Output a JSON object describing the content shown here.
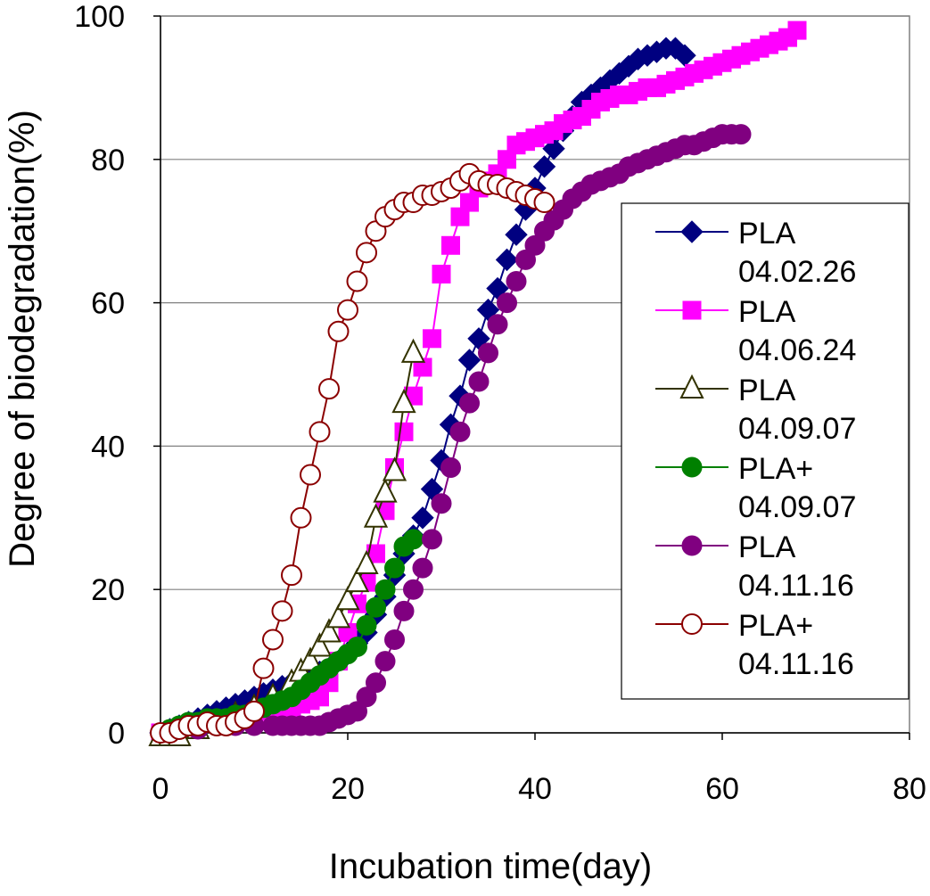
{
  "chart_data": {
    "type": "line",
    "title": "",
    "xlabel": "Incubation time(day)",
    "ylabel": "Degree of biodegradation(%)",
    "xlim": [
      0,
      80
    ],
    "ylim": [
      0,
      100
    ],
    "xticks": [
      0,
      20,
      40,
      60,
      80
    ],
    "yticks": [
      0,
      20,
      40,
      60,
      80,
      100
    ],
    "grid": "horizontal",
    "legend_position": "right",
    "series": [
      {
        "name": "PLA 04.02.26",
        "label_lines": [
          "PLA",
          "04.02.26"
        ],
        "color": "#000080",
        "marker": "diamond-filled",
        "x": [
          0,
          1,
          2,
          3,
          4,
          5,
          6,
          7,
          8,
          9,
          10,
          11,
          12,
          13,
          14,
          15,
          16,
          17,
          18,
          19,
          20,
          21,
          22,
          23,
          24,
          25,
          26,
          27,
          28,
          29,
          30,
          31,
          32,
          33,
          34,
          35,
          36,
          37,
          38,
          39,
          40,
          41,
          42,
          43,
          44,
          45,
          46,
          47,
          48,
          49,
          50,
          51,
          52,
          53,
          54,
          55,
          56
        ],
        "y": [
          0,
          0.5,
          1,
          1.5,
          2,
          2.5,
          3,
          3.5,
          4,
          4.5,
          5,
          5.5,
          6,
          6.5,
          7,
          7.5,
          8,
          8.5,
          9,
          10,
          11,
          12.5,
          14,
          16.5,
          19,
          22,
          25,
          27.5,
          30,
          34,
          38,
          43,
          47,
          52,
          55,
          59,
          62,
          66,
          69.5,
          73,
          76,
          79,
          81.5,
          84,
          86,
          88,
          89,
          90,
          91,
          92,
          93,
          94,
          94.5,
          95,
          95.5,
          95.5,
          94.5
        ]
      },
      {
        "name": "PLA 04.06.24",
        "label_lines": [
          "PLA",
          "04.06.24"
        ],
        "color": "#ff00ff",
        "marker": "square-filled",
        "x": [
          0,
          2,
          4,
          6,
          8,
          10,
          12,
          14,
          15,
          16,
          17,
          18,
          19,
          20,
          21,
          22,
          23,
          24,
          25,
          26,
          27,
          28,
          29,
          30,
          31,
          32,
          33,
          34,
          35,
          36,
          37,
          38,
          39,
          40,
          41,
          42,
          43,
          44,
          45,
          46,
          47,
          48,
          49,
          50,
          51,
          52,
          53,
          54,
          55,
          56,
          57,
          58,
          59,
          60,
          61,
          62,
          63,
          64,
          65,
          66,
          67,
          68
        ],
        "y": [
          0,
          0.5,
          1,
          1.5,
          2,
          2.5,
          3,
          3.5,
          4,
          4.5,
          5,
          7,
          10,
          14,
          18,
          21,
          25,
          31,
          37,
          42,
          47,
          51,
          55,
          64,
          68,
          72,
          74,
          76,
          77,
          78,
          80,
          82,
          82.5,
          83,
          83.5,
          84,
          85,
          85.5,
          86,
          87,
          88,
          88.5,
          89,
          89,
          89.5,
          90,
          90,
          90.5,
          91,
          91.5,
          92,
          92.5,
          93,
          93.5,
          94,
          94.5,
          95,
          95.5,
          96,
          96.5,
          97,
          98
        ]
      },
      {
        "name": "PLA 04.09.07",
        "label_lines": [
          "PLA",
          "04.09.07"
        ],
        "color": "#333300",
        "marker": "triangle-open",
        "x": [
          0,
          1,
          2,
          4,
          6,
          8,
          10,
          12,
          14,
          15,
          16,
          17,
          18,
          19,
          20,
          21,
          22,
          23,
          24,
          25,
          26,
          27
        ],
        "y": [
          -0.5,
          -0.5,
          -0.5,
          0.5,
          1.5,
          2.5,
          3.5,
          5,
          7,
          8.5,
          10,
          12,
          14,
          16,
          18.5,
          21,
          23.5,
          30,
          33.5,
          36.5,
          46,
          53
        ]
      },
      {
        "name": "PLA+ 04.09.07",
        "label_lines": [
          "PLA+",
          "04.09.07"
        ],
        "color": "#008000",
        "marker": "circle-filled",
        "x": [
          0,
          1,
          2,
          3,
          4,
          5,
          6,
          7,
          8,
          9,
          10,
          11,
          12,
          13,
          14,
          15,
          16,
          17,
          18,
          19,
          20,
          21,
          22,
          23,
          24,
          25,
          26,
          27
        ],
        "y": [
          0,
          0.5,
          1,
          1.5,
          1.5,
          2,
          2,
          2,
          2.5,
          2.5,
          3,
          3.5,
          4,
          4.5,
          5,
          6,
          7,
          8,
          9,
          10,
          11,
          12,
          15,
          17.5,
          20,
          23,
          26,
          27
        ]
      },
      {
        "name": "PLA 04.11.16",
        "label_lines": [
          "PLA",
          "04.11.16"
        ],
        "color": "#800080",
        "marker": "circle-filled",
        "x": [
          0,
          2,
          4,
          6,
          8,
          10,
          12,
          13,
          14,
          15,
          16,
          17,
          18,
          19,
          20,
          21,
          22,
          23,
          24,
          25,
          26,
          27,
          28,
          29,
          30,
          31,
          32,
          33,
          34,
          35,
          36,
          37,
          38,
          39,
          40,
          41,
          42,
          43,
          44,
          45,
          46,
          47,
          48,
          49,
          50,
          51,
          52,
          53,
          54,
          55,
          56,
          57,
          58,
          59,
          60,
          61,
          62
        ],
        "y": [
          0,
          0.5,
          0.5,
          1,
          1,
          1,
          1,
          1,
          1,
          1,
          1,
          1,
          1.5,
          2,
          2.5,
          3,
          5,
          7,
          10,
          13,
          17,
          20,
          23,
          27,
          32,
          37,
          42,
          46,
          49,
          53,
          57,
          60,
          63,
          66,
          68,
          70,
          71.5,
          73,
          74.5,
          75.5,
          76.5,
          77,
          77.5,
          78,
          79,
          79.5,
          80,
          80.5,
          81,
          81.5,
          82,
          82,
          82.5,
          83,
          83.5,
          83.5,
          83.5
        ]
      },
      {
        "name": "PLA+ 04.11.16",
        "label_lines": [
          "PLA+",
          "04.11.16"
        ],
        "color": "#8b0000",
        "marker": "circle-open",
        "x": [
          0,
          1,
          2,
          3,
          4,
          5,
          6,
          7,
          8,
          9,
          10,
          11,
          12,
          13,
          14,
          15,
          16,
          17,
          18,
          19,
          20,
          21,
          22,
          23,
          24,
          25,
          26,
          27,
          28,
          29,
          30,
          31,
          32,
          33,
          34,
          35,
          36,
          37,
          38,
          39,
          40,
          41
        ],
        "y": [
          0,
          0,
          0.5,
          1,
          1,
          1.5,
          1,
          1,
          1.5,
          2,
          3,
          9,
          13,
          17,
          22,
          30,
          36,
          42,
          48,
          56,
          59,
          63,
          67,
          70,
          72,
          73,
          74,
          74,
          75,
          75,
          75.5,
          76,
          77,
          78,
          77,
          76.5,
          76.5,
          76,
          75.5,
          75,
          74.5,
          74
        ]
      }
    ]
  }
}
